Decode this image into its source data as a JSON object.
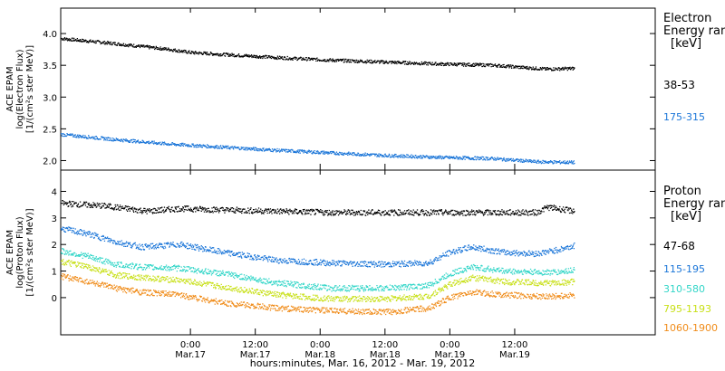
{
  "chart_data": [
    {
      "type": "scatter",
      "panel": "electron",
      "ylabel_lines": [
        "ACE EPAM",
        "log(Electron Flux)",
        "[1/(cm²s ster MeV)]"
      ],
      "ylim": [
        1.85,
        4.4
      ],
      "yticks": [
        "2.0",
        "2.5",
        "3.0",
        "3.5",
        "4.0"
      ],
      "legend_title_lines": [
        "Electron",
        "Energy ran",
        "[keV]"
      ],
      "series": [
        {
          "name": "38-53",
          "color": "#000000",
          "t": [
            0,
            10,
            20,
            24,
            30,
            40,
            50,
            60,
            70,
            80,
            88,
            90,
            95
          ],
          "values": [
            3.92,
            3.84,
            3.75,
            3.7,
            3.67,
            3.62,
            3.58,
            3.55,
            3.52,
            3.5,
            3.45,
            3.44,
            3.45
          ]
        },
        {
          "name": "175-315",
          "color": "#1a75d8",
          "t": [
            0,
            10,
            20,
            30,
            40,
            50,
            60,
            70,
            80,
            88,
            95
          ],
          "values": [
            2.41,
            2.33,
            2.26,
            2.21,
            2.16,
            2.12,
            2.08,
            2.05,
            2.03,
            1.98,
            1.97
          ]
        }
      ]
    },
    {
      "type": "scatter",
      "panel": "proton",
      "ylabel_lines": [
        "ACE EPAM",
        "log(Proton Flux)",
        "[1/(cm²s ster MeV)]"
      ],
      "ylim": [
        -1.4,
        4.8
      ],
      "yticks": [
        "0",
        "1",
        "2",
        "3",
        "4"
      ],
      "legend_title_lines": [
        "Proton",
        "Energy ran",
        "[keV]"
      ],
      "series": [
        {
          "name": "47-68",
          "color": "#000000",
          "t": [
            0,
            8,
            16,
            22,
            30,
            40,
            50,
            60,
            70,
            80,
            88,
            90,
            95
          ],
          "values": [
            3.55,
            3.45,
            3.25,
            3.35,
            3.3,
            3.25,
            3.2,
            3.2,
            3.2,
            3.2,
            3.2,
            3.4,
            3.25
          ]
        },
        {
          "name": "115-195",
          "color": "#1a75d8",
          "t": [
            0,
            5,
            10,
            15,
            22,
            30,
            40,
            50,
            60,
            68,
            72,
            76,
            82,
            88,
            92,
            95
          ],
          "values": [
            2.6,
            2.4,
            2.1,
            1.9,
            2.0,
            1.7,
            1.4,
            1.3,
            1.25,
            1.3,
            1.7,
            1.9,
            1.7,
            1.65,
            1.8,
            1.95
          ]
        },
        {
          "name": "310-580",
          "color": "#33d6c8",
          "t": [
            0,
            5,
            10,
            15,
            22,
            30,
            40,
            50,
            60,
            68,
            72,
            76,
            82,
            88,
            92,
            95
          ],
          "values": [
            1.75,
            1.55,
            1.25,
            1.15,
            1.1,
            0.9,
            0.55,
            0.35,
            0.35,
            0.45,
            0.9,
            1.15,
            1.0,
            0.95,
            0.95,
            1.05
          ]
        },
        {
          "name": "795-1193",
          "color": "#c8e018",
          "t": [
            0,
            5,
            10,
            15,
            22,
            30,
            40,
            50,
            60,
            68,
            72,
            76,
            82,
            88,
            92,
            95
          ],
          "values": [
            1.35,
            1.15,
            0.85,
            0.75,
            0.65,
            0.4,
            0.1,
            -0.05,
            -0.05,
            0.05,
            0.5,
            0.75,
            0.6,
            0.55,
            0.55,
            0.6
          ]
        },
        {
          "name": "1060-1900",
          "color": "#f08c1a",
          "t": [
            0,
            5,
            10,
            15,
            22,
            30,
            40,
            50,
            60,
            68,
            72,
            76,
            82,
            88,
            92,
            95
          ],
          "values": [
            0.8,
            0.6,
            0.35,
            0.2,
            0.1,
            -0.2,
            -0.4,
            -0.5,
            -0.55,
            -0.4,
            0.0,
            0.2,
            0.1,
            0.05,
            0.05,
            0.1
          ]
        }
      ]
    }
  ],
  "x_axis": {
    "t_range": [
      0,
      110
    ],
    "ticks": [
      {
        "t": 24,
        "time": "0:00",
        "date": "Mar.17"
      },
      {
        "t": 36,
        "time": "12:00",
        "date": "Mar.17"
      },
      {
        "t": 48,
        "time": "0:00",
        "date": "Mar.18"
      },
      {
        "t": 60,
        "time": "12:00",
        "date": "Mar.18"
      },
      {
        "t": 72,
        "time": "0:00",
        "date": "Mar.19"
      },
      {
        "t": 84,
        "time": "12:00",
        "date": "Mar.19"
      }
    ],
    "label": "hours:minutes, Mar. 16, 2012 - Mar. 19, 2012"
  }
}
